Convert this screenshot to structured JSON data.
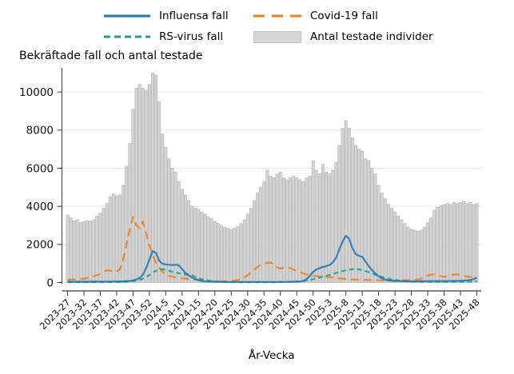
{
  "chart": {
    "title": "Bekräftade fall och antal testade",
    "xlabel": "År-Vecka",
    "legend": [
      {
        "label": "Influensa fall",
        "color": "#1f77b4",
        "style": "solid-line"
      },
      {
        "label": "Covid-19 fall",
        "color": "#f07d1d",
        "style": "dashed-line"
      },
      {
        "label": "RS-virus fall",
        "color": "#17a095",
        "style": "dashed-line"
      },
      {
        "label": "Antal testade individer",
        "color": "#d6d6d6",
        "style": "patch"
      }
    ]
  },
  "chart_data": {
    "type": "bar+line",
    "title": "Bekräftade fall och antal testade",
    "xlabel": "År-Vecka",
    "ylabel": "",
    "grid": true,
    "legend_position": "top",
    "ylim": [
      0,
      11300
    ],
    "yticks": [
      0,
      2000,
      4000,
      6000,
      8000,
      10000
    ],
    "x_tick_labels": [
      "2023-27",
      "2023-32",
      "2023-37",
      "2023-42",
      "2023-47",
      "2023-52",
      "2024-5",
      "2024-10",
      "2024-15",
      "2024-20",
      "2024-25",
      "2024-30",
      "2024-35",
      "2024-40",
      "2024-45",
      "2024-50",
      "2025-3",
      "2025-8",
      "2025-13",
      "2025-18",
      "2025-23",
      "2025-28",
      "2025-33",
      "2025-38",
      "2025-43",
      "2025-48"
    ],
    "tick_every": 5,
    "x": [
      "2023-27",
      "2023-28",
      "2023-29",
      "2023-30",
      "2023-31",
      "2023-32",
      "2023-33",
      "2023-34",
      "2023-35",
      "2023-36",
      "2023-37",
      "2023-38",
      "2023-39",
      "2023-40",
      "2023-41",
      "2023-42",
      "2023-43",
      "2023-44",
      "2023-45",
      "2023-46",
      "2023-47",
      "2023-48",
      "2023-49",
      "2023-50",
      "2023-51",
      "2023-52",
      "2024-1",
      "2024-2",
      "2024-3",
      "2024-4",
      "2024-5",
      "2024-6",
      "2024-7",
      "2024-8",
      "2024-9",
      "2024-10",
      "2024-11",
      "2024-12",
      "2024-13",
      "2024-14",
      "2024-15",
      "2024-16",
      "2024-17",
      "2024-18",
      "2024-19",
      "2024-20",
      "2024-21",
      "2024-22",
      "2024-23",
      "2024-24",
      "2024-25",
      "2024-26",
      "2024-27",
      "2024-28",
      "2024-29",
      "2024-30",
      "2024-31",
      "2024-32",
      "2024-33",
      "2024-34",
      "2024-35",
      "2024-36",
      "2024-37",
      "2024-38",
      "2024-39",
      "2024-40",
      "2024-41",
      "2024-42",
      "2024-43",
      "2024-44",
      "2024-45",
      "2024-46",
      "2024-47",
      "2024-48",
      "2024-49",
      "2024-50",
      "2024-51",
      "2024-52",
      "2025-1",
      "2025-2",
      "2025-3",
      "2025-4",
      "2025-5",
      "2025-6",
      "2025-7",
      "2025-8",
      "2025-9",
      "2025-10",
      "2025-11",
      "2025-12",
      "2025-13",
      "2025-14",
      "2025-15",
      "2025-16",
      "2025-17",
      "2025-18",
      "2025-19",
      "2025-20",
      "2025-21",
      "2025-22",
      "2025-23",
      "2025-24",
      "2025-25",
      "2025-26",
      "2025-27",
      "2025-28",
      "2025-29",
      "2025-30",
      "2025-31",
      "2025-32",
      "2025-33",
      "2025-34",
      "2025-35",
      "2025-36",
      "2025-37",
      "2025-38",
      "2025-39",
      "2025-40",
      "2025-41",
      "2025-42",
      "2025-43",
      "2025-44",
      "2025-45",
      "2025-46",
      "2025-47",
      "2025-48"
    ],
    "bar_series": {
      "name": "Antal testade individer",
      "fill": "#d4d4d4",
      "edge": "#a8a8a8",
      "values": [
        3550,
        3400,
        3250,
        3300,
        3150,
        3200,
        3250,
        3200,
        3300,
        3500,
        3650,
        3900,
        4150,
        4500,
        4650,
        4550,
        4600,
        5100,
        6100,
        7300,
        9100,
        10200,
        10400,
        10200,
        10100,
        10400,
        11000,
        10900,
        9500,
        7800,
        7100,
        6500,
        6000,
        5800,
        5300,
        4900,
        4600,
        4300,
        4000,
        3900,
        3850,
        3700,
        3600,
        3450,
        3350,
        3200,
        3100,
        3000,
        2900,
        2850,
        2800,
        2850,
        2950,
        3100,
        3300,
        3600,
        3900,
        4300,
        4700,
        5000,
        5300,
        5900,
        5600,
        5500,
        5700,
        5800,
        5500,
        5400,
        5500,
        5600,
        5500,
        5400,
        5300,
        5500,
        5600,
        6400,
        5900,
        5700,
        6200,
        5800,
        5700,
        5900,
        6300,
        7200,
        8100,
        8500,
        8100,
        7600,
        7200,
        7000,
        6900,
        6500,
        6400,
        6000,
        5700,
        5100,
        4700,
        4400,
        4100,
        3900,
        3700,
        3500,
        3300,
        3100,
        2900,
        2800,
        2750,
        2700,
        2750,
        2900,
        3150,
        3400,
        3800,
        3950,
        4050,
        4100,
        4150,
        4100,
        4200,
        4150,
        4200,
        4250,
        4150,
        4200,
        4100,
        4150
      ]
    },
    "series": [
      {
        "name": "Covid-19 fall",
        "type": "line",
        "dash": "10,6",
        "color": "#f07d1d",
        "values": [
          140,
          150,
          160,
          170,
          180,
          200,
          230,
          270,
          320,
          380,
          450,
          560,
          640,
          620,
          570,
          560,
          700,
          1200,
          2000,
          2800,
          3450,
          3000,
          2850,
          3200,
          2600,
          1950,
          1450,
          1050,
          780,
          560,
          420,
          350,
          300,
          270,
          240,
          220,
          210,
          190,
          170,
          150,
          130,
          110,
          100,
          90,
          75,
          65,
          60,
          60,
          65,
          70,
          80,
          100,
          130,
          180,
          260,
          380,
          520,
          680,
          820,
          930,
          1000,
          1030,
          1050,
          950,
          800,
          730,
          780,
          800,
          760,
          680,
          600,
          540,
          480,
          430,
          390,
          350,
          330,
          310,
          300,
          290,
          280,
          260,
          240,
          220,
          200,
          185,
          170,
          160,
          150,
          145,
          140,
          135,
          130,
          130,
          125,
          120,
          115,
          110,
          110,
          110,
          110,
          110,
          115,
          120,
          125,
          130,
          140,
          160,
          200,
          280,
          360,
          420,
          430,
          400,
          340,
          300,
          320,
          380,
          420,
          430,
          400,
          350,
          320,
          300,
          290,
          280
        ]
      },
      {
        "name": "RS-virus fall",
        "type": "line",
        "dash": "6,4",
        "color": "#17a095",
        "values": [
          15,
          15,
          15,
          15,
          15,
          15,
          15,
          15,
          15,
          15,
          15,
          15,
          20,
          20,
          20,
          20,
          25,
          30,
          40,
          55,
          75,
          100,
          140,
          200,
          290,
          390,
          520,
          620,
          680,
          700,
          660,
          620,
          560,
          520,
          490,
          450,
          420,
          440,
          380,
          300,
          230,
          170,
          130,
          100,
          80,
          60,
          45,
          35,
          30,
          25,
          20,
          15,
          15,
          15,
          15,
          15,
          15,
          15,
          15,
          15,
          15,
          15,
          15,
          15,
          15,
          20,
          25,
          30,
          35,
          40,
          50,
          60,
          80,
          100,
          130,
          170,
          210,
          260,
          310,
          350,
          400,
          450,
          500,
          550,
          600,
          640,
          670,
          700,
          710,
          690,
          650,
          600,
          540,
          480,
          410,
          350,
          290,
          240,
          200,
          160,
          130,
          110,
          90,
          75,
          65,
          55,
          50,
          45,
          40,
          40,
          35,
          35,
          30,
          30,
          30,
          30,
          30,
          35,
          35,
          40,
          40,
          45,
          50,
          55,
          60,
          70
        ]
      },
      {
        "name": "Influensa fall",
        "type": "line",
        "dash": "solid",
        "color": "#1f77b4",
        "values": [
          40,
          40,
          40,
          40,
          40,
          40,
          40,
          40,
          45,
          45,
          45,
          50,
          50,
          50,
          55,
          55,
          60,
          60,
          70,
          85,
          110,
          160,
          240,
          400,
          750,
          1200,
          1650,
          1550,
          1150,
          980,
          950,
          930,
          920,
          930,
          900,
          700,
          500,
          370,
          270,
          180,
          120,
          80,
          60,
          50,
          40,
          40,
          35,
          35,
          30,
          30,
          30,
          30,
          30,
          30,
          30,
          30,
          30,
          30,
          30,
          30,
          30,
          30,
          30,
          30,
          30,
          30,
          30,
          35,
          35,
          40,
          40,
          50,
          90,
          180,
          350,
          550,
          680,
          760,
          820,
          860,
          920,
          1050,
          1300,
          1750,
          2150,
          2450,
          2300,
          1800,
          1500,
          1400,
          1350,
          1100,
          850,
          650,
          480,
          330,
          220,
          150,
          110,
          90,
          80,
          75,
          70,
          70,
          65,
          65,
          65,
          65,
          70,
          70,
          70,
          70,
          75,
          75,
          75,
          80,
          80,
          80,
          85,
          85,
          90,
          100,
          110,
          140,
          180,
          250
        ]
      }
    ],
    "style": {
      "grid_color": "#e3efed",
      "axis_color": "#3a3a3a",
      "tick_label_color": "#111111",
      "bar_fill": "#d4d4d4",
      "bar_edge": "#a8a8a8"
    }
  }
}
